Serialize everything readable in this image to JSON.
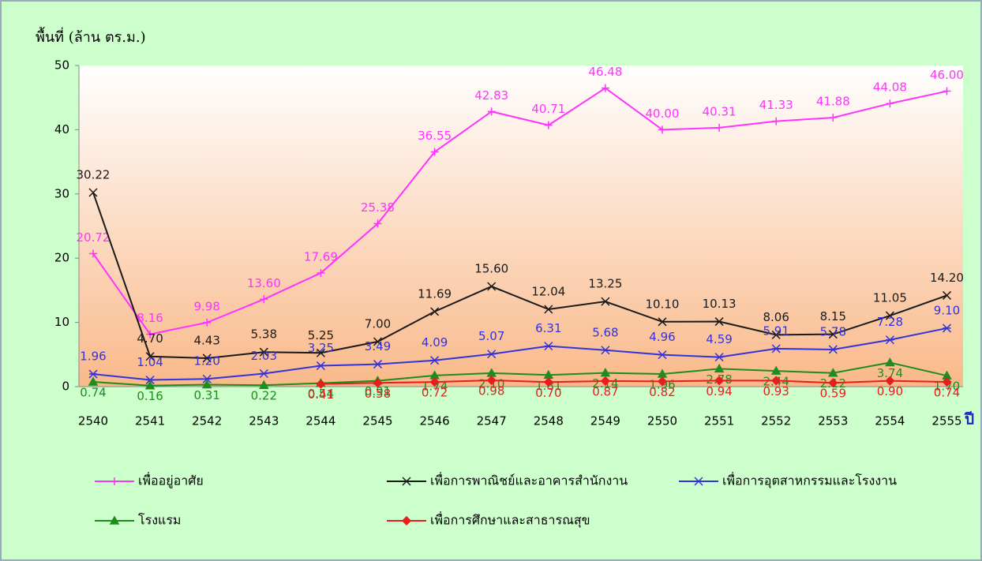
{
  "chart_data": {
    "type": "line",
    "y_label": "พื้นที่ (ล้าน ตร.ม.)",
    "x_label": "ปี",
    "categories": [
      "2540",
      "2541",
      "2542",
      "2543",
      "2544",
      "2545",
      "2546",
      "2547",
      "2548",
      "2549",
      "2550",
      "2551",
      "2552",
      "2553",
      "2554",
      "2555"
    ],
    "ylim": [
      0,
      50
    ],
    "yticks": [
      0,
      10,
      20,
      30,
      40,
      50
    ],
    "series": [
      {
        "name": "เพื่ออยู่อาศัย",
        "color": "#ff33ff",
        "marker": "plus",
        "values": [
          20.72,
          8.16,
          9.98,
          13.6,
          17.69,
          25.38,
          36.55,
          42.83,
          40.71,
          46.48,
          40,
          40.31,
          41.33,
          41.88,
          44.08,
          46
        ],
        "value_labels": [
          "20.72",
          "8.16",
          "9.98",
          "13.60",
          "17.69",
          "25.38",
          "36.55",
          "42.83",
          "40.71",
          "46.48",
          "40.00",
          "40.31",
          "41.33",
          "41.88",
          "44.08",
          "46.00"
        ]
      },
      {
        "name": "เพื่อการพาณิชย์และอาคารสำนักงาน",
        "color": "#1a1a1a",
        "marker": "x",
        "values": [
          30.22,
          4.7,
          4.43,
          5.38,
          5.25,
          7,
          11.69,
          15.6,
          12.04,
          13.25,
          10.1,
          10.13,
          8.06,
          8.15,
          11.05,
          14.2
        ],
        "value_labels": [
          "30.22",
          "4.70",
          "4.43",
          "5.38",
          "5.25",
          "7.00",
          "11.69",
          "15.60",
          "12.04",
          "13.25",
          "10.10",
          "10.13",
          "8.06",
          "8.15",
          "11.05",
          "14.20"
        ]
      },
      {
        "name": "เพื่อการอุตสาหกรรมและโรงงาน",
        "color": "#3333dd",
        "marker": "star",
        "values": [
          1.96,
          1.04,
          1.2,
          2.03,
          3.25,
          3.49,
          4.09,
          5.07,
          6.31,
          5.68,
          4.96,
          4.59,
          5.91,
          5.78,
          7.28,
          9.1
        ],
        "value_labels": [
          "1.96",
          "1.04",
          "1.20",
          "2.03",
          "3.25",
          "3.49",
          "4.09",
          "5.07",
          "6.31",
          "5.68",
          "4.96",
          "4.59",
          "5.91",
          "5.78",
          "7.28",
          "9.10"
        ]
      },
      {
        "name": "โรงแรม",
        "color": "#1f8c1f",
        "marker": "triangle",
        "values": [
          0.74,
          0.16,
          0.31,
          0.22,
          0.54,
          0.91,
          1.74,
          2.1,
          1.81,
          2.14,
          1.96,
          2.78,
          2.44,
          2.12,
          3.74,
          1.7
        ],
        "value_labels": [
          "0.74",
          "0.16",
          "0.31",
          "0.22",
          "0.54",
          "0.91",
          "1.74",
          "2.10",
          "1.81",
          "2.14",
          "1.96",
          "2.78",
          "2.44",
          "2.12",
          "3.74",
          "1.70"
        ]
      },
      {
        "name": "เพื่อการศึกษาและสาธารณสุข",
        "color": "#e61e1e",
        "marker": "diamond",
        "values": [
          null,
          null,
          null,
          null,
          0.41,
          0.58,
          0.72,
          0.98,
          0.7,
          0.87,
          0.82,
          0.94,
          0.93,
          0.59,
          0.9,
          0.74
        ],
        "value_labels": [
          null,
          null,
          null,
          null,
          "0.41",
          "0.58",
          "0.72",
          "0.98",
          "0.70",
          "0.87",
          "0.82",
          "0.94",
          "0.93",
          "0.59",
          "0.90",
          "0.74"
        ]
      }
    ]
  }
}
